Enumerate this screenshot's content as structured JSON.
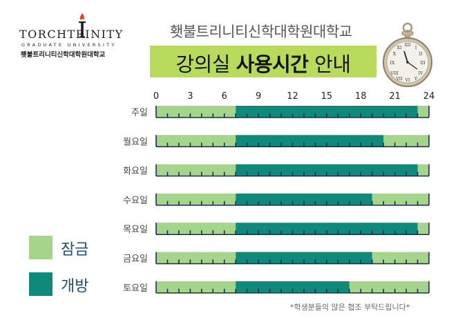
{
  "logo": {
    "name": "TORCHTRINITY",
    "subtitle": "GRADUATE UNIVERSITY",
    "korean_name": "횃불트리니티신학대학원대학교"
  },
  "header": {
    "school_name": "횃불트리니티신학대학원대학교",
    "title_part1": "강의실 ",
    "title_bold": "사용시간",
    "title_part2": " 안내",
    "banner_color": "#b9db5b"
  },
  "legend": {
    "closed_label": "잠금",
    "open_label": "개방"
  },
  "footnote": "*학생분들의 많은 협조 부탁드립니다*",
  "colors": {
    "closed": "#a4d58a",
    "open": "#0f8a7a",
    "tick": "#1c2a55",
    "day_label": "#444444",
    "tick_label": "#222222"
  },
  "chart_data": {
    "type": "bar",
    "orientation": "horizontal",
    "xlim": [
      0,
      24
    ],
    "xticks": [
      0,
      3,
      6,
      9,
      12,
      15,
      18,
      21,
      24
    ],
    "categories": [
      "주일",
      "월요일",
      "화요일",
      "수요일",
      "목요일",
      "금요일",
      "토요일"
    ],
    "series": [
      {
        "name": "개방",
        "start": [
          7,
          7,
          7,
          7,
          7,
          7,
          7
        ],
        "end": [
          23,
          20,
          23,
          19,
          23,
          19,
          17
        ]
      },
      {
        "name": "잠금",
        "ranges": [
          [
            [
              0,
              7
            ],
            [
              23,
              24
            ]
          ],
          [
            [
              0,
              7
            ],
            [
              20,
              24
            ]
          ],
          [
            [
              0,
              7
            ],
            [
              23,
              24
            ]
          ],
          [
            [
              0,
              7
            ],
            [
              19,
              24
            ]
          ],
          [
            [
              0,
              7
            ],
            [
              23,
              24
            ]
          ],
          [
            [
              0,
              7
            ],
            [
              19,
              24
            ]
          ],
          [
            [
              0,
              7
            ],
            [
              17,
              24
            ]
          ]
        ]
      }
    ]
  }
}
